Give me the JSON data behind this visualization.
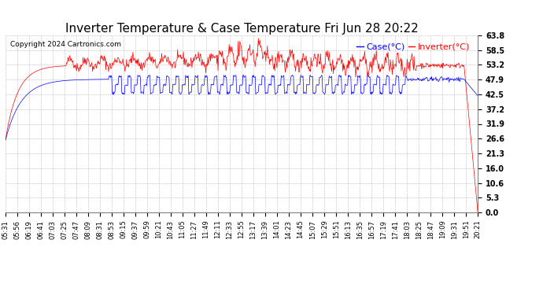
{
  "title": "Inverter Temperature & Case Temperature Fri Jun 28 20:22",
  "copyright": "Copyright 2024 Cartronics.com",
  "legend_case_label": "Case(°C)",
  "legend_inverter_label": "Inverter(°C)",
  "legend_case_color": "blue",
  "legend_inverter_color": "red",
  "yticks": [
    0.0,
    5.3,
    10.6,
    16.0,
    21.3,
    26.6,
    31.9,
    37.2,
    42.5,
    47.9,
    53.2,
    58.5,
    63.8
  ],
  "ymin": 0.0,
  "ymax": 63.8,
  "background_color": "#ffffff",
  "plot_bg_color": "#ffffff",
  "grid_color": "#aaaaaa",
  "grid_linestyle": "--",
  "title_fontsize": 11,
  "copyright_fontsize": 6.5,
  "legend_fontsize": 8,
  "tick_fontsize": 6,
  "ytick_fontsize": 7,
  "n_points": 890,
  "time_labels": [
    "05:31",
    "05:56",
    "06:19",
    "06:41",
    "07:03",
    "07:25",
    "07:47",
    "08:09",
    "08:31",
    "08:53",
    "09:15",
    "09:37",
    "09:59",
    "10:21",
    "10:43",
    "11:05",
    "11:27",
    "11:49",
    "12:11",
    "12:33",
    "12:55",
    "13:17",
    "13:39",
    "14:01",
    "14:23",
    "14:45",
    "15:07",
    "15:29",
    "15:51",
    "16:13",
    "16:35",
    "16:57",
    "17:19",
    "17:41",
    "18:03",
    "18:25",
    "18:47",
    "19:09",
    "19:31",
    "19:51",
    "20:21"
  ]
}
